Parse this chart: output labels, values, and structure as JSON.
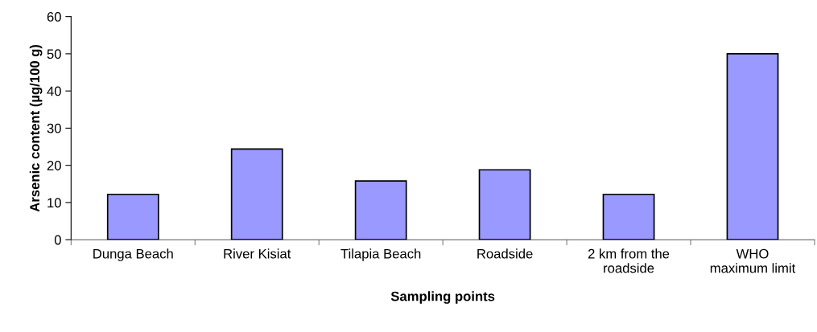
{
  "chart_data": {
    "type": "bar",
    "xlabel": "Sampling points",
    "ylabel": "Arsenic content (µg/100 g)",
    "categories": [
      "Dunga Beach",
      "River Kisiat",
      "Tilapia Beach",
      "Roadside",
      "2 km from the\nroadside",
      "WHO\nmaximum limit"
    ],
    "values": [
      12.2,
      24.4,
      15.8,
      18.8,
      12.2,
      50
    ],
    "color": "#9999ff",
    "ylim": [
      0,
      60
    ],
    "yticks": [
      0,
      10,
      20,
      30,
      40,
      50,
      60
    ],
    "grid": false
  }
}
